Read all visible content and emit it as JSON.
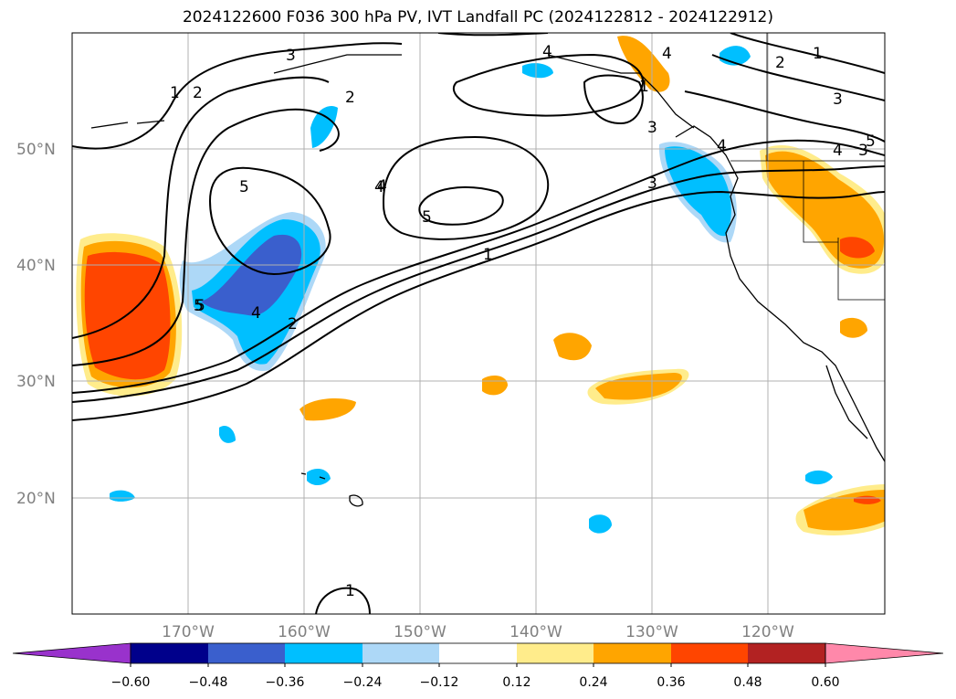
{
  "title": "2024122600 F036 300 hPa PV, IVT Landfall PC (2024122812 - 2024122912)",
  "map": {
    "lon_range": [
      -180,
      -110
    ],
    "lat_range": [
      10,
      60
    ],
    "lat_labels": [
      "50°N",
      "40°N",
      "30°N",
      "20°N"
    ],
    "lon_labels": [
      "170°W",
      "160°W",
      "150°W",
      "140°W",
      "130°W",
      "120°W"
    ],
    "contour_labels": [
      "1",
      "2",
      "3",
      "4",
      "5",
      "1",
      "2",
      "3",
      "4",
      "5",
      "4",
      "5",
      "3",
      "1",
      "5",
      "4",
      "2",
      "4",
      "3",
      "2",
      "1",
      "3",
      "4",
      "5",
      "1",
      "4"
    ]
  },
  "colorbar": {
    "ticks": [
      "−0.60",
      "−0.48",
      "−0.36",
      "−0.24",
      "−0.12",
      "0.12",
      "0.24",
      "0.36",
      "0.48",
      "0.60"
    ],
    "colors": [
      "#9932cc",
      "#00008b",
      "#3a5fcd",
      "#00bfff",
      "#add8f7",
      "#ffffff",
      "#ffec8b",
      "#ffa500",
      "#ff4500",
      "#b22222",
      "#ff88aa"
    ]
  }
}
